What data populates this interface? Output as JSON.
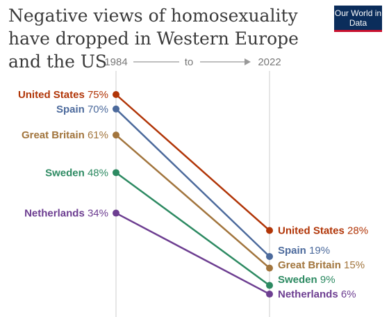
{
  "title": "Negative views of homosexuality have dropped in Western Europe and the US",
  "logo": "Our World in Data",
  "chart_data": {
    "type": "slope",
    "start_label": "1984",
    "end_label": "2022",
    "connector": "to",
    "unit": "%",
    "ylim": [
      0,
      80
    ],
    "series": [
      {
        "name": "United States",
        "start": 75,
        "end": 28,
        "color": "#b13507"
      },
      {
        "name": "Spain",
        "start": 70,
        "end": 19,
        "color": "#4c6a9c"
      },
      {
        "name": "Great Britain",
        "start": 61,
        "end": 15,
        "color": "#a2753d"
      },
      {
        "name": "Sweden",
        "start": 48,
        "end": 9,
        "color": "#2d8a62"
      },
      {
        "name": "Netherlands",
        "start": 34,
        "end": 6,
        "color": "#6d3e91"
      }
    ]
  }
}
